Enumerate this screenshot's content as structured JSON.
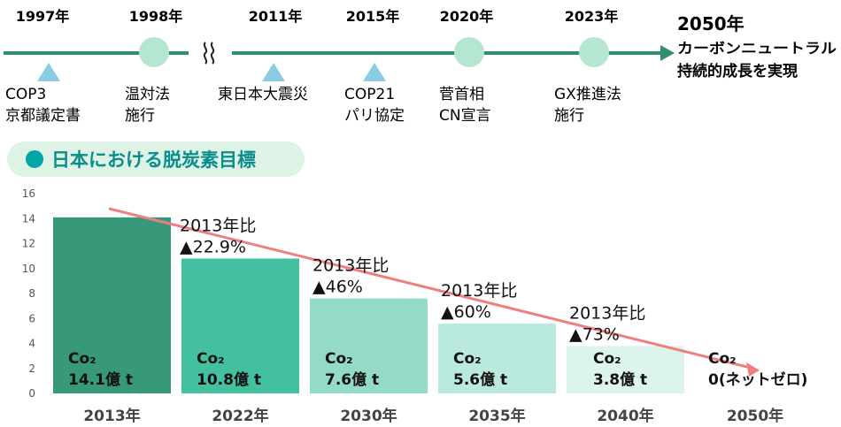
{
  "colors": {
    "timeline": "#2f8f73",
    "circle": "#b4e6d2",
    "triangle": "#8ccbe1",
    "pill_bg": "#dff2e6",
    "pill_dot": "#00a5a8",
    "pill_text": "#0a8e8c",
    "trend": "#ef7f7f"
  },
  "timeline": {
    "years": [
      "1997年",
      "1998年",
      "2011年",
      "2015年",
      "2020年",
      "2023年"
    ],
    "events": [
      {
        "marker": "triangle-icon",
        "line1": "COP3",
        "line2": "京都議定書"
      },
      {
        "marker": "circle-icon",
        "line1": "温対法",
        "line2": "施行"
      },
      {
        "marker": "triangle-icon",
        "line1": "東日本大震災",
        "line2": ""
      },
      {
        "marker": "triangle-icon",
        "line1": "COP21",
        "line2": "パリ協定"
      },
      {
        "marker": "circle-icon",
        "line1": "菅首相",
        "line2": "CN宣言"
      },
      {
        "marker": "circle-icon",
        "line1": "GX推進法",
        "line2": "施行"
      }
    ],
    "goal": {
      "year": "2050年",
      "line1": "カーボンニュートラル",
      "line2": "持続的成長を実現"
    }
  },
  "section": {
    "title": "日本における脱炭素目標"
  },
  "chart_data": {
    "type": "bar",
    "title": "",
    "xlabel": "",
    "ylabel": "",
    "categories": [
      "2013年",
      "2022年",
      "2030年",
      "2035年",
      "2040年",
      "2050年"
    ],
    "values": [
      14.1,
      10.8,
      7.6,
      5.6,
      3.8,
      0
    ],
    "unit": "億 t",
    "ylim": [
      0,
      16
    ],
    "yticks": [
      "0",
      "2",
      "4",
      "6",
      "8",
      "10",
      "12",
      "14",
      "16"
    ],
    "bar_colors": [
      "#379979",
      "#43c0a0",
      "#93dbc7",
      "#b9eadd",
      "#ddf4ec",
      "#ffffff"
    ],
    "co2_label": "Co₂",
    "value_labels": [
      "14.1億 t",
      "10.8億 t",
      "7.6億 t",
      "5.6億 t",
      "3.8億 t",
      "0(ネットゼロ)"
    ],
    "annotations": [
      null,
      {
        "line1": "2013年比",
        "line2": "▲22.9%"
      },
      {
        "line1": "2013年比",
        "line2": "▲46%"
      },
      {
        "line1": "2013年比",
        "line2": "▲60%"
      },
      {
        "line1": "2013年比",
        "line2": "▲73%"
      },
      null
    ],
    "grid": false,
    "legend": "none"
  }
}
